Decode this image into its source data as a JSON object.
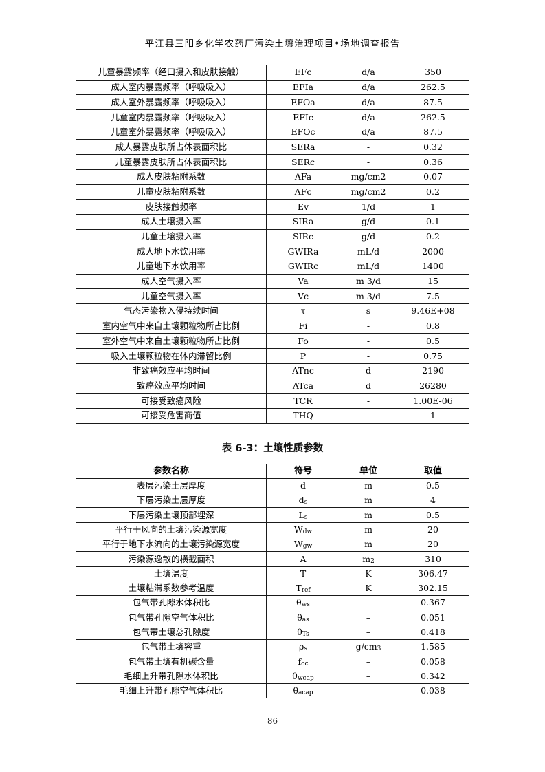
{
  "header": {
    "title": "平江县三阳乡化学农药厂污染土壤治理项目•场地调查报告"
  },
  "table1": {
    "rows": [
      [
        "儿童暴露频率（经口摄入和皮肤接触）",
        "EFc",
        "d/a",
        "350"
      ],
      [
        "成人室内暴露频率（呼吸吸入）",
        "EFIa",
        "d/a",
        "262.5"
      ],
      [
        "成人室外暴露频率（呼吸吸入）",
        "EFOa",
        "d/a",
        "87.5"
      ],
      [
        "儿童室内暴露频率（呼吸吸入）",
        "EFIc",
        "d/a",
        "262.5"
      ],
      [
        "儿童室外暴露频率（呼吸吸入）",
        "EFOc",
        "d/a",
        "87.5"
      ],
      [
        "成人暴露皮肤所占体表面积比",
        "SERa",
        "-",
        "0.32"
      ],
      [
        "儿童暴露皮肤所占体表面积比",
        "SERc",
        "-",
        "0.36"
      ],
      [
        "成人皮肤粘附系数",
        "AFa",
        "mg/cm2",
        "0.07"
      ],
      [
        "儿童皮肤粘附系数",
        "AFc",
        "mg/cm2",
        "0.2"
      ],
      [
        "皮肤接触频率",
        "Ev",
        "1/d",
        "1"
      ],
      [
        "成人土壤摄入率",
        "SIRa",
        "g/d",
        "0.1"
      ],
      [
        "儿童土壤摄入率",
        "SIRc",
        "g/d",
        "0.2"
      ],
      [
        "成人地下水饮用率",
        "GWIRa",
        "mL/d",
        "2000"
      ],
      [
        "儿童地下水饮用率",
        "GWIRc",
        "mL/d",
        "1400"
      ],
      [
        "成人空气摄入率",
        "Va",
        "m 3/d",
        "15"
      ],
      [
        "儿童空气摄入率",
        "Vc",
        "m 3/d",
        "7.5"
      ],
      [
        "气态污染物入侵持续时间",
        "τ",
        "s",
        "9.46E+08"
      ],
      [
        "室内空气中来自土壤颗粒物所占比例",
        "Fi",
        "-",
        "0.8"
      ],
      [
        "室外空气中来自土壤颗粒物所占比例",
        "Fo",
        "-",
        "0.5"
      ],
      [
        "吸入土壤颗粒物在体内滞留比例",
        "P",
        "-",
        "0.75"
      ],
      [
        "非致癌效应平均时间",
        "ATnc",
        "d",
        "2190"
      ],
      [
        "致癌效应平均时间",
        "ATca",
        "d",
        "26280"
      ],
      [
        "可接受致癌风险",
        "TCR",
        "-",
        "1.00E-06"
      ],
      [
        "可接受危害商值",
        "THQ",
        "-",
        "1"
      ]
    ]
  },
  "table2": {
    "title": "表 6-3：土壤性质参数",
    "columns": [
      "参数名称",
      "符号",
      "单位",
      "取值"
    ],
    "rows": [
      [
        "表层污染土层厚度",
        "d",
        "m",
        "0.5"
      ],
      [
        "下层污染土层厚度",
        "d_{s}",
        "m",
        "4"
      ],
      [
        "下层污染土壤顶部埋深",
        "L_{s}",
        "m",
        "0.5"
      ],
      [
        "平行于风向的土壤污染源宽度",
        "W_{dw}",
        "m",
        "20"
      ],
      [
        "平行于地下水流向的土壤污染源宽度",
        "W_{gw}",
        "m",
        "20"
      ],
      [
        "污染源逸散的横截面积",
        "A",
        "m_{2}",
        "310"
      ],
      [
        "土壤温度",
        "T",
        "K",
        "306.47"
      ],
      [
        "土壤粘滞系数参考温度",
        "T_{ref}",
        "K",
        "302.15"
      ],
      [
        "包气带孔隙水体积比",
        "θ_{ws}",
        "–",
        "0.367"
      ],
      [
        "包气带孔隙空气体积比",
        "θ_{as}",
        "–",
        "0.051"
      ],
      [
        "包气带土壤总孔隙度",
        "θ_{Ts}",
        "–",
        "0.418"
      ],
      [
        "包气带土壤容重",
        "ρ_{s}",
        "g/cm_{3}",
        "1.585"
      ],
      [
        "包气带土壤有机碳含量",
        "f_{oc}",
        "–",
        "0.058"
      ],
      [
        "毛细上升带孔隙水体积比",
        "θ_{wcap}",
        "–",
        "0.342"
      ],
      [
        "毛细上升带孔隙空气体积比",
        "θ_{acap}",
        "–",
        "0.038"
      ]
    ]
  },
  "footer": {
    "page_number": "86"
  }
}
